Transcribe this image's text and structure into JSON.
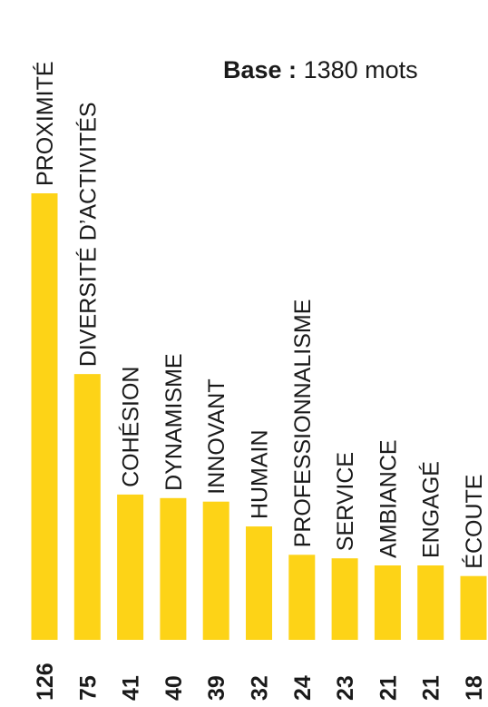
{
  "note": {
    "label": "Base :",
    "value": "1380 mots"
  },
  "colors": {
    "bar": "#FDD317",
    "text": "#1a1a1a"
  },
  "chart_data": {
    "type": "bar",
    "orientation": "vertical",
    "title": "",
    "xlabel": "",
    "ylabel": "",
    "ylim": [
      0,
      126
    ],
    "grid": false,
    "categories": [
      "PROXIMITÉ",
      "DIVERSITÉ D’ACTIVITÉS",
      "COHÉSION",
      "DYNAMISME",
      "INNOVANT",
      "HUMAIN",
      "PROFESSIONNALISME",
      "SERVICE",
      "AMBIANCE",
      "ENGAGÉ",
      "ÉCOUTE"
    ],
    "values": [
      126,
      75,
      41,
      40,
      39,
      32,
      24,
      23,
      21,
      21,
      18
    ]
  }
}
